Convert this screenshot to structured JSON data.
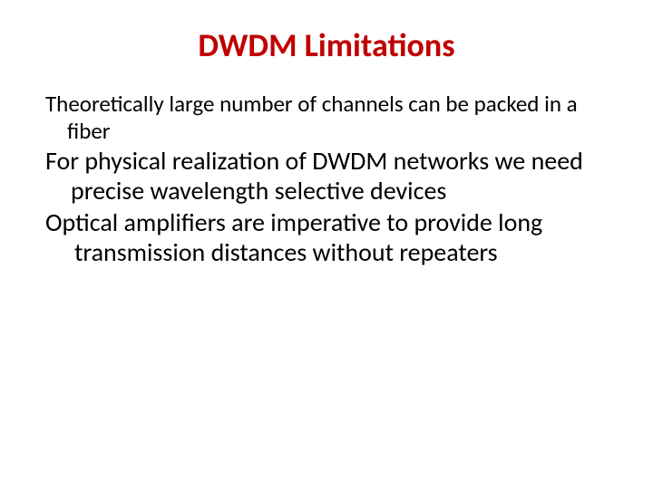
{
  "title": {
    "text": "DWDM Limitations",
    "color": "#c00000",
    "fontsize": 36,
    "fontweight": "bold"
  },
  "paragraphs": [
    {
      "text": "Theoretically large number of channels can be packed in a fiber",
      "fontsize": 25,
      "color": "#000000"
    },
    {
      "text": "For physical realization of DWDM networks we need precise wavelength selective devices",
      "fontsize": 28,
      "color": "#000000"
    },
    {
      "text": "Optical amplifiers are imperative to provide long transmission distances without repeaters",
      "fontsize": 28,
      "color": "#000000"
    }
  ],
  "background_color": "#ffffff",
  "slide_width": 720,
  "slide_height": 540
}
